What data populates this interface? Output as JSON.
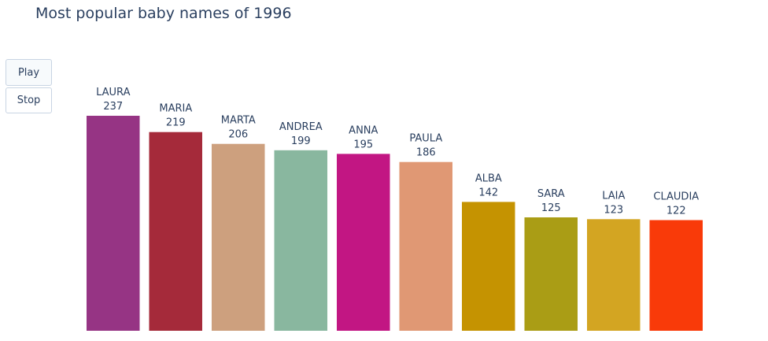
{
  "chart_data": {
    "type": "bar",
    "title": "Most popular baby names of 1996",
    "categories": [
      "LAURA",
      "MARIA",
      "MARTA",
      "ANDREA",
      "ANNA",
      "PAULA",
      "ALBA",
      "SARA",
      "LAIA",
      "CLAUDIA"
    ],
    "values": [
      237,
      219,
      206,
      199,
      195,
      186,
      142,
      125,
      123,
      122
    ],
    "colors": [
      "#963484",
      "#A52A3A",
      "#CDA07E",
      "#89B79F",
      "#C21683",
      "#E09874",
      "#C59301",
      "#AA9D15",
      "#D3A522",
      "#F93A09"
    ],
    "ylim": [
      0,
      237
    ],
    "grid": false,
    "legend": "none"
  },
  "controls": {
    "play_label": "Play",
    "stop_label": "Stop"
  }
}
